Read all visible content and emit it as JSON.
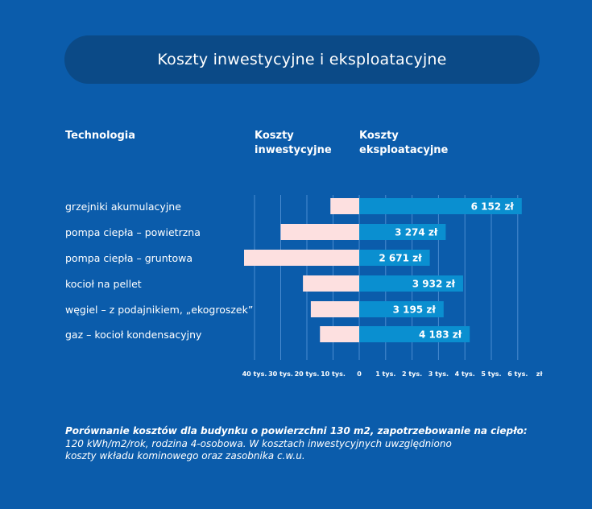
{
  "title": "Koszty inwestycyjne i eksploatacyjne",
  "headers": {
    "technology": "Technologia",
    "investment_line1": "Koszty",
    "investment_line2": "inwestycyjne",
    "operating_line1": "Koszty",
    "operating_line2": "eksploatacyjne"
  },
  "colors": {
    "background": "#0b5cab",
    "title_pill": "#0b4a87",
    "investment_bar": "#fde0e0",
    "operating_bar": "#0a8fd0",
    "gridline": "#4a8cd0"
  },
  "chart_data": {
    "type": "bar",
    "orientation": "horizontal-diverging",
    "categories": [
      "grzejniki akumulacyjne",
      "pompa ciepła – powietrzna",
      "pompa ciepła – gruntowa",
      "kocioł na pellet",
      "węgiel – z podajnikiem, „ekogroszek”",
      "gaz – kocioł kondensacyjny"
    ],
    "series": [
      {
        "name": "Koszty inwestycyjne",
        "values": [
          11000,
          30000,
          44000,
          21500,
          18500,
          15000
        ]
      },
      {
        "name": "Koszty eksploatacyjne",
        "values": [
          6152,
          3274,
          2671,
          3932,
          3195,
          4183
        ],
        "labels": [
          "6 152 zł",
          "3 274 zł",
          "2 671 zł",
          "3 932 zł",
          "3 195 zł",
          "4 183 zł"
        ]
      }
    ],
    "left_axis": {
      "range": [
        0,
        40000
      ],
      "ticks": [
        40000,
        30000,
        20000,
        10000
      ],
      "tick_labels": [
        "40 tys.",
        "30 tys.",
        "20 tys.",
        "10 tys."
      ]
    },
    "right_axis": {
      "range": [
        0,
        6000
      ],
      "ticks": [
        1000,
        2000,
        3000,
        4000,
        5000,
        6000
      ],
      "tick_labels": [
        "1 tys.",
        "2 tys.",
        "3 tys.",
        "4 tys.",
        "5 tys.",
        "6 tys."
      ]
    },
    "zero_label": "0",
    "unit_label": "zł",
    "grid": true
  },
  "caption": {
    "bold": "Porównanie kosztów dla budynku o powierzchni 130 m2, zapotrzebowanie na ciepło:",
    "line2": "120 kWh/m2/rok, rodzina 4-osobowa. W kosztach inwestycyjnych uwzględniono",
    "line3": "koszty wkładu kominowego oraz zasobnika c.w.u."
  }
}
